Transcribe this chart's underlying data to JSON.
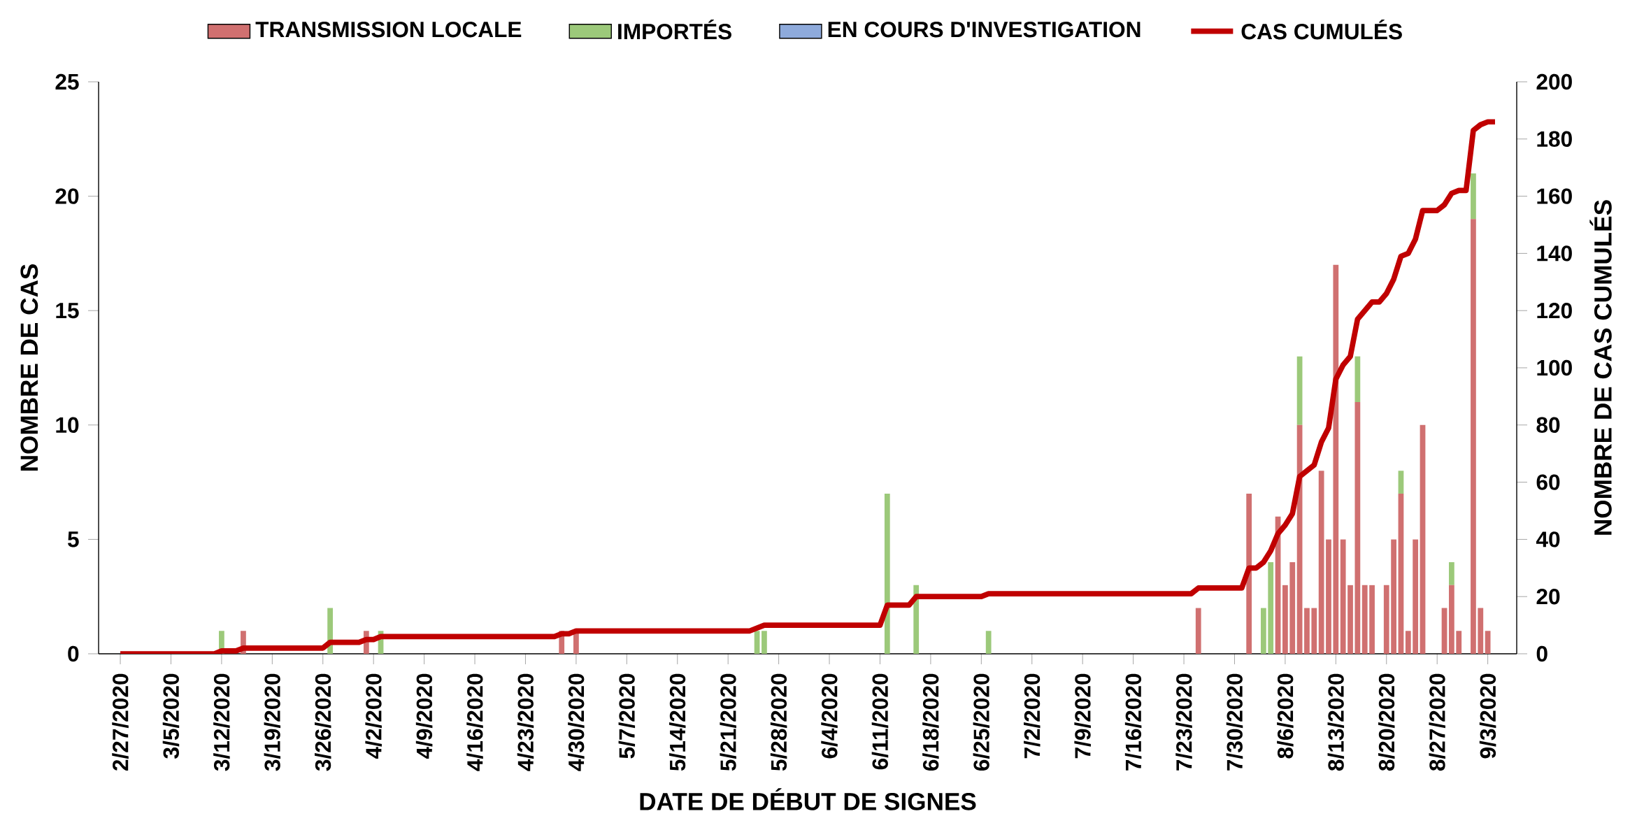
{
  "chart_data": {
    "type": "bar",
    "stacked": true,
    "legend": "top",
    "xlabel": "DATE DE DÉBUT DE SIGNES",
    "ylabel": "NOMBRE DE CAS",
    "y2label": "NOMBRE DE CAS CUMULÉS",
    "xlim": [
      "2020-02-24",
      "2020-09-07"
    ],
    "ylim": [
      0,
      25
    ],
    "yticks": [
      0,
      5,
      10,
      15,
      20,
      25
    ],
    "y2lim": [
      0,
      200
    ],
    "y2ticks": [
      0,
      20,
      40,
      60,
      80,
      100,
      120,
      140,
      160,
      180,
      200
    ],
    "xticks": [
      {
        "value": "2020-02-27",
        "label": "2/27/2020"
      },
      {
        "value": "2020-03-05",
        "label": "3/5/2020"
      },
      {
        "value": "2020-03-12",
        "label": "3/12/2020"
      },
      {
        "value": "2020-03-19",
        "label": "3/19/2020"
      },
      {
        "value": "2020-03-26",
        "label": "3/26/2020"
      },
      {
        "value": "2020-04-02",
        "label": "4/2/2020"
      },
      {
        "value": "2020-04-09",
        "label": "4/9/2020"
      },
      {
        "value": "2020-04-16",
        "label": "4/16/2020"
      },
      {
        "value": "2020-04-23",
        "label": "4/23/2020"
      },
      {
        "value": "2020-04-30",
        "label": "4/30/2020"
      },
      {
        "value": "2020-05-07",
        "label": "5/7/2020"
      },
      {
        "value": "2020-05-14",
        "label": "5/14/2020"
      },
      {
        "value": "2020-05-21",
        "label": "5/21/2020"
      },
      {
        "value": "2020-05-28",
        "label": "5/28/2020"
      },
      {
        "value": "2020-06-04",
        "label": "6/4/2020"
      },
      {
        "value": "2020-06-11",
        "label": "6/11/2020"
      },
      {
        "value": "2020-06-18",
        "label": "6/18/2020"
      },
      {
        "value": "2020-06-25",
        "label": "6/25/2020"
      },
      {
        "value": "2020-07-02",
        "label": "7/2/2020"
      },
      {
        "value": "2020-07-09",
        "label": "7/9/2020"
      },
      {
        "value": "2020-07-16",
        "label": "7/16/2020"
      },
      {
        "value": "2020-07-23",
        "label": "7/23/2020"
      },
      {
        "value": "2020-07-30",
        "label": "7/30/2020"
      },
      {
        "value": "2020-08-06",
        "label": "8/6/2020"
      },
      {
        "value": "2020-08-13",
        "label": "8/13/2020"
      },
      {
        "value": "2020-08-20",
        "label": "8/20/2020"
      },
      {
        "value": "2020-08-27",
        "label": "8/27/2020"
      },
      {
        "value": "2020-09-03",
        "label": "9/3/2020"
      }
    ],
    "x": [
      "2020-03-12",
      "2020-03-15",
      "2020-03-27",
      "2020-04-01",
      "2020-04-03",
      "2020-04-28",
      "2020-04-30",
      "2020-05-25",
      "2020-05-26",
      "2020-06-12",
      "2020-06-16",
      "2020-06-26",
      "2020-07-25",
      "2020-08-01",
      "2020-08-03",
      "2020-08-04",
      "2020-08-05",
      "2020-08-06",
      "2020-08-07",
      "2020-08-08",
      "2020-08-09",
      "2020-08-10",
      "2020-08-11",
      "2020-08-12",
      "2020-08-13",
      "2020-08-14",
      "2020-08-15",
      "2020-08-16",
      "2020-08-17",
      "2020-08-18",
      "2020-08-20",
      "2020-08-21",
      "2020-08-22",
      "2020-08-23",
      "2020-08-24",
      "2020-08-25",
      "2020-08-28",
      "2020-08-29",
      "2020-08-30",
      "2020-09-01",
      "2020-09-02",
      "2020-09-03"
    ],
    "series": [
      {
        "name": "TRANSMISSION LOCALE",
        "color": "#d07070",
        "values": [
          0,
          1,
          0,
          1,
          0,
          1,
          1,
          0,
          0,
          0,
          0,
          0,
          2,
          7,
          0,
          0,
          6,
          3,
          4,
          10,
          2,
          2,
          8,
          5,
          17,
          5,
          3,
          11,
          3,
          3,
          3,
          5,
          7,
          1,
          5,
          10,
          2,
          3,
          1,
          19,
          2,
          1
        ]
      },
      {
        "name": "IMPORTÉS",
        "color": "#9cc97a",
        "values": [
          1,
          0,
          2,
          0,
          1,
          0,
          0,
          1,
          1,
          7,
          3,
          1,
          0,
          0,
          2,
          4,
          0,
          0,
          0,
          3,
          0,
          0,
          0,
          0,
          0,
          0,
          0,
          2,
          0,
          0,
          0,
          0,
          1,
          0,
          0,
          0,
          0,
          1,
          0,
          2,
          0,
          0
        ]
      },
      {
        "name": "EN COURS D'INVESTIGATION",
        "color": "#8eaadb",
        "values": [
          0,
          0,
          0,
          0,
          0,
          0,
          0,
          0,
          0,
          0,
          0,
          0,
          0,
          0,
          0,
          0,
          0,
          0,
          0,
          0,
          0,
          0,
          0,
          0,
          0,
          0,
          0,
          0,
          0,
          0,
          0,
          0,
          0,
          0,
          0,
          0,
          0,
          0,
          0,
          0,
          0,
          0
        ]
      },
      {
        "name": "CAS CUMULÉS",
        "color": "#c00000",
        "type": "line",
        "axis": "y2",
        "x": [
          "2020-02-27",
          "2020-03-11",
          "2020-03-12",
          "2020-03-14",
          "2020-03-15",
          "2020-03-26",
          "2020-03-27",
          "2020-03-31",
          "2020-04-01",
          "2020-04-02",
          "2020-04-03",
          "2020-04-27",
          "2020-04-28",
          "2020-04-29",
          "2020-04-30",
          "2020-05-24",
          "2020-05-25",
          "2020-05-26",
          "2020-06-11",
          "2020-06-12",
          "2020-06-15",
          "2020-06-16",
          "2020-06-25",
          "2020-06-26",
          "2020-07-24",
          "2020-07-25",
          "2020-07-31",
          "2020-08-01",
          "2020-08-02",
          "2020-08-03",
          "2020-08-04",
          "2020-08-05",
          "2020-08-06",
          "2020-08-07",
          "2020-08-08",
          "2020-08-09",
          "2020-08-10",
          "2020-08-11",
          "2020-08-12",
          "2020-08-13",
          "2020-08-14",
          "2020-08-15",
          "2020-08-16",
          "2020-08-17",
          "2020-08-18",
          "2020-08-19",
          "2020-08-20",
          "2020-08-21",
          "2020-08-22",
          "2020-08-23",
          "2020-08-24",
          "2020-08-25",
          "2020-08-26",
          "2020-08-27",
          "2020-08-28",
          "2020-08-29",
          "2020-08-30",
          "2020-08-31",
          "2020-09-01",
          "2020-09-02",
          "2020-09-03",
          "2020-09-04"
        ],
        "values": [
          0,
          0,
          1,
          1,
          2,
          2,
          4,
          4,
          5,
          5,
          6,
          6,
          7,
          7,
          8,
          8,
          9,
          10,
          10,
          17,
          17,
          20,
          20,
          21,
          21,
          23,
          23,
          30,
          30,
          32,
          36,
          42,
          45,
          49,
          62,
          64,
          66,
          74,
          79,
          96,
          101,
          104,
          117,
          120,
          123,
          123,
          126,
          131,
          139,
          140,
          145,
          155,
          155,
          155,
          157,
          161,
          162,
          162,
          183,
          185,
          186,
          186
        ]
      }
    ]
  }
}
